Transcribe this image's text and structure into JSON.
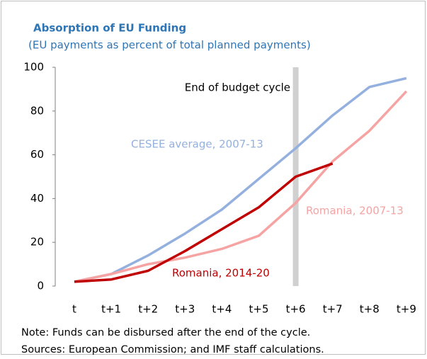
{
  "chart_data": {
    "type": "line",
    "title": "Absorption of EU Funding",
    "subtitle": "(EU payments as percent of total planned payments)",
    "annotation": "End of budget cycle",
    "note": "Note: Funds can be disbursed after the end of the cycle.",
    "sources": "Sources: European Commission; and IMF staff calculations.",
    "categories": [
      "t",
      "t+1",
      "t+2",
      "t+3",
      "t+4",
      "t+5",
      "t+6",
      "t+7",
      "t+8",
      "t+9"
    ],
    "series": [
      {
        "name": "CESEE average, 2007-13",
        "color": "#94b0de",
        "values": [
          2,
          5.5,
          14,
          24,
          35,
          49,
          63,
          78,
          91,
          95
        ]
      },
      {
        "name": "Romania, 2007-13",
        "color": "#f6a3a3",
        "values": [
          2,
          5.5,
          10,
          13,
          17,
          23,
          38,
          57,
          71,
          89
        ]
      },
      {
        "name": "Romania, 2014-20",
        "color": "#c00000",
        "values": [
          2,
          3,
          7,
          16,
          26,
          36,
          50,
          56,
          null,
          null
        ]
      }
    ],
    "ylim": [
      0,
      100
    ],
    "yticks": [
      0,
      20,
      40,
      60,
      80,
      100
    ]
  }
}
